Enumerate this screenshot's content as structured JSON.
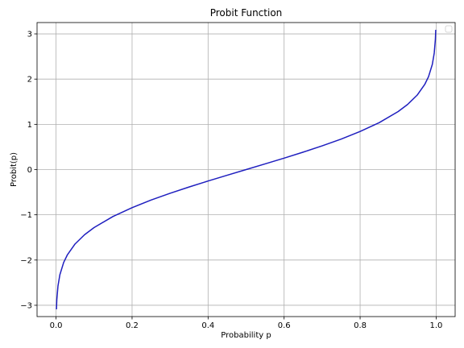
{
  "chart_data": {
    "type": "line",
    "title": "Probit Function",
    "xlabel": "Probability p",
    "ylabel": "Probit(p)",
    "xlim": [
      -0.05,
      1.05
    ],
    "ylim": [
      -3.25,
      3.25
    ],
    "xticks": [
      0.0,
      0.2,
      0.4,
      0.6,
      0.8,
      1.0
    ],
    "xtick_labels": [
      "0.0",
      "0.2",
      "0.4",
      "0.6",
      "0.8",
      "1.0"
    ],
    "yticks": [
      -3,
      -2,
      -1,
      0,
      1,
      2,
      3
    ],
    "ytick_labels": [
      "−3",
      "−2",
      "−1",
      "0",
      "1",
      "2",
      "3"
    ],
    "grid": true,
    "legend": {
      "placement": "top-right",
      "entries": []
    },
    "series": [
      {
        "color": "#1f1fbf",
        "x": [
          0.001,
          0.002,
          0.005,
          0.01,
          0.02,
          0.03,
          0.05,
          0.075,
          0.1,
          0.15,
          0.2,
          0.25,
          0.3,
          0.35,
          0.4,
          0.45,
          0.5,
          0.55,
          0.6,
          0.65,
          0.7,
          0.75,
          0.8,
          0.85,
          0.9,
          0.925,
          0.95,
          0.97,
          0.98,
          0.99,
          0.995,
          0.998,
          0.999
        ],
        "y": [
          -3.09,
          -2.878,
          -2.576,
          -2.326,
          -2.054,
          -1.881,
          -1.645,
          -1.44,
          -1.282,
          -1.036,
          -0.842,
          -0.674,
          -0.524,
          -0.385,
          -0.253,
          -0.126,
          0.0,
          0.126,
          0.253,
          0.385,
          0.524,
          0.674,
          0.842,
          1.036,
          1.282,
          1.44,
          1.645,
          1.881,
          2.054,
          2.326,
          2.576,
          2.878,
          3.09
        ]
      }
    ]
  }
}
